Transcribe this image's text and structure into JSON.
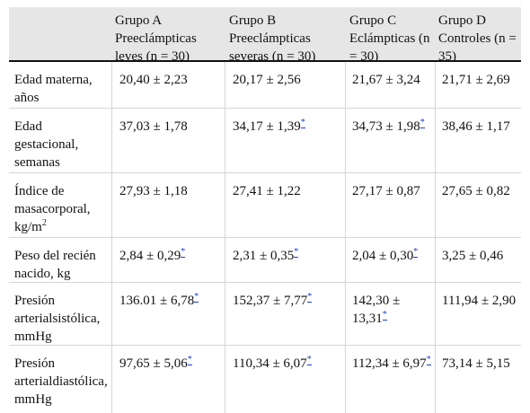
{
  "header": {
    "c0": "",
    "c1": "Grupo A Preeclámpticas leves (n = 30)",
    "c2": "Grupo B Preeclámpticas severas (n = 30)",
    "c3": "Grupo C Eclámpticas (n = 30)",
    "c4": "Grupo D Controles (n = 35)"
  },
  "footnote_mark": "*",
  "rows": [
    {
      "label": "Edad materna, años",
      "a": "20,40 ± 2,23",
      "b": "20,17 ± 2,56",
      "c": "21,67 ± 3,24",
      "d": "21,71 ± 2,69"
    },
    {
      "label": "Edad gestacional, semanas",
      "a": "37,03 ± 1,78",
      "b": "34,17 ± 1,39",
      "c": "34,73 ± 1,98",
      "d": "38,46 ± 1,17"
    },
    {
      "label_main": "Índice de masacorporal, kg/m",
      "label_sup": "2",
      "a": "27,93 ± 1,18",
      "b": "27,41 ± 1,22",
      "c": "27,17 ± 0,87",
      "d": "27,65 ± 0,82"
    },
    {
      "label": "Peso del recién nacido, kg",
      "a": "2,84 ± 0,29",
      "b": "2,31 ± 0,35",
      "c": "2,04 ± 0,30",
      "d": "3,25 ± 0,46"
    },
    {
      "label": "Presión arterialsistólica, mmHg",
      "a": "136.01 ± 6,78",
      "b": "152,37 ± 7,77",
      "c": "142,30 ± 13,31",
      "d": "111,94 ± 2,90"
    },
    {
      "label": "Presión arterialdiastólica, mmHg",
      "a": "97,65 ± 5,06",
      "b": "110,34 ± 6,07",
      "c": "112,34 ± 6,97",
      "d": "73,14 ± 5,15"
    }
  ]
}
